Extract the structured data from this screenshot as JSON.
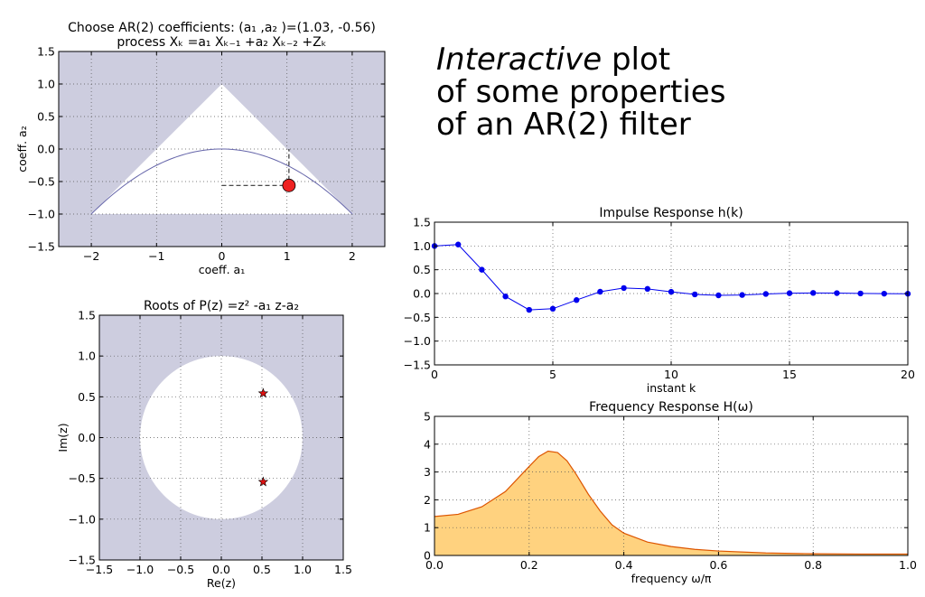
{
  "headline": {
    "line1_italic": "Interactive",
    "line1_rest": " plot",
    "line2": "of some properties",
    "line3": "of an AR(2) filter"
  },
  "colors": {
    "unstable_region": "#cdcddf",
    "stable_region": "#ffffff",
    "parabola": "#6666aa",
    "marker": "#ee2222",
    "impulse": "#0000ee",
    "freq_line": "#dd5500",
    "freq_fill": "#ffd27f"
  },
  "chart_data": [
    {
      "id": "coef",
      "type": "scatter",
      "title": [
        "Choose AR(2) coefficients: (a₁ ,a₂ )=(1.03, -0.56)",
        "process Xₖ =a₁ Xₖ₋₁ +a₂ Xₖ₋₂ +Zₖ"
      ],
      "xlabel": "coeff. a₁",
      "ylabel": "coeff. a₂",
      "xlim": [
        -2.5,
        2.5
      ],
      "ylim": [
        -1.5,
        1.5
      ],
      "xticks": [
        -2,
        -1,
        0,
        1,
        2
      ],
      "yticks": [
        -1.5,
        -1.0,
        -0.5,
        0.0,
        0.5,
        1.0,
        1.5
      ],
      "grid": true,
      "stable_triangle": [
        [
          -2,
          -1
        ],
        [
          0,
          1
        ],
        [
          2,
          -1
        ]
      ],
      "parabola": "a2 = -a1^2/4",
      "point": {
        "a1": 1.03,
        "a2": -0.56
      }
    },
    {
      "id": "roots",
      "type": "scatter",
      "title": [
        "Roots of P(z) =z² -a₁ z-a₂"
      ],
      "xlabel": "Re(z)",
      "ylabel": "Im(z)",
      "xlim": [
        -1.5,
        1.5
      ],
      "ylim": [
        -1.5,
        1.5
      ],
      "xticks": [
        -1.5,
        -1.0,
        -0.5,
        0.0,
        0.5,
        1.0,
        1.5
      ],
      "yticks": [
        -1.5,
        -1.0,
        -0.5,
        0.0,
        0.5,
        1.0,
        1.5
      ],
      "grid": true,
      "unit_circle": true,
      "points": [
        [
          0.515,
          0.543
        ],
        [
          0.515,
          -0.543
        ]
      ]
    },
    {
      "id": "impulse",
      "type": "line",
      "title": [
        "Impulse Response h(k)"
      ],
      "xlabel": "instant k",
      "ylabel": "",
      "xlim": [
        0,
        20
      ],
      "ylim": [
        -1.5,
        1.5
      ],
      "xticks": [
        0,
        5,
        10,
        15,
        20
      ],
      "yticks": [
        -1.5,
        -1.0,
        -0.5,
        0.0,
        0.5,
        1.0,
        1.5
      ],
      "grid": true,
      "x": [
        0,
        1,
        2,
        3,
        4,
        5,
        6,
        7,
        8,
        9,
        10,
        11,
        12,
        13,
        14,
        15,
        16,
        17,
        18,
        19,
        20
      ],
      "y": [
        1.0,
        1.03,
        0.501,
        -0.061,
        -0.343,
        -0.319,
        -0.137,
        0.038,
        0.116,
        0.098,
        0.036,
        -0.018,
        -0.038,
        -0.03,
        -0.009,
        0.007,
        0.013,
        0.009,
        0.002,
        -0.003,
        -0.004
      ]
    },
    {
      "id": "freq",
      "type": "area",
      "title": [
        "Frequency Response H(ω)"
      ],
      "xlabel": "frequency ω/π",
      "ylabel": "",
      "xlim": [
        0,
        1
      ],
      "ylim": [
        0,
        5
      ],
      "xticks": [
        0.0,
        0.2,
        0.4,
        0.6,
        0.8,
        1.0
      ],
      "yticks": [
        0,
        1,
        2,
        3,
        4,
        5
      ],
      "grid": true,
      "x": [
        0,
        0.05,
        0.1,
        0.15,
        0.2,
        0.22,
        0.24,
        0.26,
        0.28,
        0.3,
        0.325,
        0.35,
        0.375,
        0.4,
        0.45,
        0.5,
        0.55,
        0.6,
        0.7,
        0.8,
        0.9,
        1.0
      ],
      "y": [
        1.4,
        1.48,
        1.75,
        2.3,
        3.2,
        3.55,
        3.75,
        3.7,
        3.4,
        2.9,
        2.2,
        1.6,
        1.1,
        0.8,
        0.48,
        0.32,
        0.22,
        0.16,
        0.09,
        0.06,
        0.05,
        0.05
      ]
    }
  ]
}
